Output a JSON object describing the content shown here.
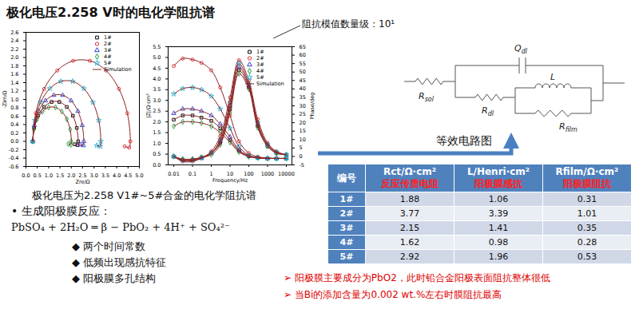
{
  "title": "极化电压2.258 V时的电化学阻抗谱",
  "annotation": "阻抗模值数量级：10¹",
  "chart_data": [
    {
      "type": "scatter",
      "xlabel": "Zre/Ω",
      "ylabel": "-Zim/Ω",
      "xlim": [
        0,
        5
      ],
      "ylim": [
        -0.6,
        2.6
      ],
      "xticks": [
        {
          "value": 0,
          "label": "0.0"
        },
        0.5,
        {
          "value": 1,
          "label": "1.0"
        },
        1.5,
        {
          "value": 2,
          "label": "2.0"
        },
        2.5,
        {
          "value": 3,
          "label": "3.0"
        },
        3.5,
        {
          "value": 4,
          "label": "4.0"
        },
        4.5,
        {
          "value": 5,
          "label": "5.0"
        }
      ],
      "yticks": [
        -0.6,
        -0.4,
        -0.2,
        {
          "value": 0,
          "label": "0.0"
        },
        0.2,
        0.4,
        0.6,
        0.8,
        {
          "value": 1,
          "label": "1.0"
        },
        1.2,
        1.4,
        1.6,
        1.8,
        {
          "value": 2,
          "label": "2.0"
        },
        2.2,
        2.4,
        2.6
      ],
      "legend": "top-right",
      "series": [
        {
          "name": "1#",
          "color": "#000000",
          "marker": "square",
          "x": [
            0.3,
            0.36,
            0.53,
            0.8,
            1.13,
            1.47,
            1.8,
            2.07,
            2.24,
            2.3,
            2.28,
            2.15
          ],
          "values": [
            0,
            0.32,
            0.61,
            0.82,
            0.94,
            0.94,
            0.82,
            0.61,
            0.32,
            0,
            -0.09,
            -0.07
          ]
        },
        {
          "name": "2#",
          "color": "#e8262a",
          "marker": "circle",
          "x": [
            0.3,
            0.43,
            0.8,
            1.38,
            2.08,
            2.82,
            3.53,
            4.1,
            4.47,
            4.6,
            4.55,
            4.35
          ],
          "values": [
            0,
            0.67,
            1.25,
            1.69,
            1.92,
            1.92,
            1.69,
            1.25,
            0.67,
            0,
            -0.15,
            -0.12
          ]
        },
        {
          "name": "3#",
          "color": "#2b3fd6",
          "marker": "triangle",
          "x": [
            0.3,
            0.37,
            0.56,
            0.86,
            1.23,
            1.62,
            1.99,
            2.29,
            2.48,
            2.55,
            2.53,
            2.4
          ],
          "values": [
            0,
            0.38,
            0.72,
            0.97,
            1.1,
            1.1,
            0.97,
            0.72,
            0.38,
            0,
            -0.1,
            -0.08
          ]
        },
        {
          "name": "4#",
          "color": "#1a9e3a",
          "marker": "diamond",
          "x": [
            0.3,
            0.35,
            0.5,
            0.73,
            1.0,
            1.3,
            1.58,
            1.8,
            1.95,
            2.0,
            1.98,
            1.87
          ],
          "values": [
            0,
            0.28,
            0.53,
            0.71,
            0.81,
            0.81,
            0.71,
            0.53,
            0.28,
            0,
            -0.08,
            -0.06
          ]
        },
        {
          "name": "5#",
          "color": "#27b6d8",
          "marker": "star",
          "x": [
            0.3,
            0.39,
            0.65,
            1.05,
            1.54,
            2.06,
            2.55,
            2.95,
            3.21,
            3.3,
            3.28,
            3.12
          ],
          "values": [
            0,
            0.5,
            0.93,
            1.26,
            1.43,
            1.43,
            1.26,
            0.93,
            0.5,
            0,
            -0.12,
            -0.1
          ]
        },
        {
          "name": "Simulation",
          "type": "line",
          "line_style": "solid",
          "color": "#8b2323",
          "x": [
            0.3,
            0.36,
            0.53,
            0.8,
            1.13,
            1.47,
            1.8,
            2.07,
            2.24,
            2.3,
            2.28,
            2.15
          ],
          "values": [
            0,
            0.32,
            0.61,
            0.82,
            0.94,
            0.94,
            0.82,
            0.61,
            0.32,
            0,
            -0.09,
            -0.07
          ]
        },
        {
          "name": "Simulation",
          "type": "line",
          "line_style": "solid",
          "color": "#8b2323",
          "x": [
            0.3,
            0.43,
            0.8,
            1.38,
            2.08,
            2.82,
            3.53,
            4.1,
            4.47,
            4.6,
            4.55,
            4.35
          ],
          "values": [
            0,
            0.67,
            1.25,
            1.69,
            1.92,
            1.92,
            1.69,
            1.25,
            0.67,
            0,
            -0.15,
            -0.12
          ]
        },
        {
          "name": "Simulation",
          "type": "line",
          "line_style": "solid",
          "color": "#8b2323",
          "x": [
            0.3,
            0.37,
            0.56,
            0.86,
            1.23,
            1.62,
            1.99,
            2.29,
            2.48,
            2.55,
            2.53,
            2.4
          ],
          "values": [
            0,
            0.38,
            0.72,
            0.97,
            1.1,
            1.1,
            0.97,
            0.72,
            0.38,
            0,
            -0.1,
            -0.08
          ]
        },
        {
          "name": "Simulation",
          "type": "line",
          "line_style": "solid",
          "color": "#8b2323",
          "x": [
            0.3,
            0.35,
            0.5,
            0.73,
            1.0,
            1.3,
            1.58,
            1.8,
            1.95,
            2.0,
            1.98,
            1.87
          ],
          "values": [
            0,
            0.28,
            0.53,
            0.71,
            0.81,
            0.81,
            0.71,
            0.53,
            0.28,
            0,
            -0.08,
            -0.06
          ]
        },
        {
          "name": "Simulation",
          "type": "line",
          "line_style": "solid",
          "color": "#8b2323",
          "x": [
            0.3,
            0.39,
            0.65,
            1.05,
            1.54,
            2.06,
            2.55,
            2.95,
            3.21,
            3.3,
            3.28,
            3.12
          ],
          "values": [
            0,
            0.5,
            0.93,
            1.26,
            1.43,
            1.43,
            1.26,
            0.93,
            0.5,
            0,
            -0.12,
            -0.1
          ]
        }
      ]
    },
    {
      "type": "scatter",
      "xlabel": "Frequency/Hz",
      "ylabel": "|Z|/Ω·cm²",
      "y2label": "Phase/deg",
      "log": "x",
      "xlim": [
        0.005,
        20000
      ],
      "xticks": [
        0.01,
        0.1,
        1,
        10,
        100,
        1000,
        10000
      ],
      "ylim": [
        0,
        5.5
      ],
      "yticks": [
        {
          "value": 0,
          "label": "0.0"
        },
        0.5,
        {
          "value": 1,
          "label": "1.0"
        },
        1.5,
        {
          "value": 2,
          "label": "2.0"
        },
        2.5,
        {
          "value": 3,
          "label": "3.0"
        },
        3.5,
        {
          "value": 4,
          "label": "4.0"
        },
        4.5,
        {
          "value": 5,
          "label": "5.0"
        },
        5.5
      ],
      "y2lim": [
        -5,
        65
      ],
      "y2ticks": [
        -5,
        0,
        5,
        10,
        15,
        20,
        25,
        30,
        35,
        40,
        45,
        50,
        55,
        60,
        65
      ],
      "legend": "top-right",
      "x": [
        0.01,
        0.03,
        0.1,
        0.3,
        1,
        3,
        10,
        30,
        100,
        300,
        1000,
        3000,
        10000
      ],
      "series": [
        {
          "name": "1#",
          "color": "#000000",
          "marker": "square",
          "values": [
            2.1,
            2.3,
            2.3,
            2.2,
            2.05,
            1.7,
            1.15,
            0.65,
            0.4,
            0.33,
            0.3,
            0.3,
            0.3
          ]
        },
        {
          "name": "2#",
          "color": "#e8262a",
          "marker": "circle",
          "values": [
            4.6,
            4.95,
            4.9,
            4.75,
            4.4,
            3.6,
            2.3,
            1.1,
            0.55,
            0.38,
            0.32,
            0.3,
            0.3
          ]
        },
        {
          "name": "3#",
          "color": "#2b3fd6",
          "marker": "triangle",
          "values": [
            2.4,
            2.6,
            2.6,
            2.5,
            2.3,
            1.9,
            1.3,
            0.7,
            0.42,
            0.33,
            0.3,
            0.3,
            0.3
          ]
        },
        {
          "name": "4#",
          "color": "#1a9e3a",
          "marker": "diamond",
          "values": [
            1.8,
            2.0,
            2.0,
            1.95,
            1.8,
            1.5,
            1.05,
            0.6,
            0.38,
            0.32,
            0.3,
            0.3,
            0.3
          ]
        },
        {
          "name": "5#",
          "color": "#27b6d8",
          "marker": "star",
          "values": [
            3.3,
            3.55,
            3.6,
            3.5,
            3.2,
            2.6,
            1.7,
            0.85,
            0.45,
            0.34,
            0.31,
            0.3,
            0.3
          ]
        },
        {
          "name": "1#",
          "color": "#000000",
          "marker": "square",
          "axis": "y2",
          "values": [
            0,
            -2,
            -2,
            -0.5,
            2,
            8,
            28,
            51,
            41,
            18,
            6,
            2,
            1
          ]
        },
        {
          "name": "2#",
          "color": "#e8262a",
          "marker": "circle",
          "axis": "y2",
          "values": [
            0,
            -3,
            -3,
            -1,
            3,
            12,
            35,
            57,
            45,
            22,
            8,
            3,
            1
          ]
        },
        {
          "name": "3#",
          "color": "#2b3fd6",
          "marker": "triangle",
          "axis": "y2",
          "values": [
            0,
            -2,
            -2,
            -1,
            2,
            9,
            30,
            53,
            42,
            19,
            7,
            2.5,
            1
          ]
        },
        {
          "name": "4#",
          "color": "#1a9e3a",
          "marker": "diamond",
          "axis": "y2",
          "values": [
            0,
            -1.5,
            -1.5,
            -0.5,
            1,
            7,
            26,
            49,
            40,
            17,
            6,
            2,
            1
          ]
        },
        {
          "name": "5#",
          "color": "#27b6d8",
          "marker": "star",
          "axis": "y2",
          "values": [
            0,
            -2.5,
            -2.5,
            -1,
            2,
            10,
            32,
            55,
            43,
            20,
            7,
            2.5,
            1
          ]
        },
        {
          "name": "Simulation",
          "type": "line",
          "line_style": "solid",
          "color": "#8b2323",
          "values": [
            2.1,
            2.3,
            2.3,
            2.2,
            2.05,
            1.7,
            1.15,
            0.65,
            0.4,
            0.33,
            0.3,
            0.3,
            0.3
          ]
        },
        {
          "name": "Simulation",
          "type": "line",
          "line_style": "solid",
          "color": "#8b2323",
          "values": [
            4.6,
            4.95,
            4.9,
            4.75,
            4.4,
            3.6,
            2.3,
            1.1,
            0.55,
            0.38,
            0.32,
            0.3,
            0.3
          ]
        },
        {
          "name": "Simulation",
          "type": "line",
          "line_style": "solid",
          "color": "#8b2323",
          "values": [
            2.4,
            2.6,
            2.6,
            2.5,
            2.3,
            1.9,
            1.3,
            0.7,
            0.42,
            0.33,
            0.3,
            0.3,
            0.3
          ]
        },
        {
          "name": "Simulation",
          "type": "line",
          "line_style": "solid",
          "color": "#8b2323",
          "values": [
            1.8,
            2.0,
            2.0,
            1.95,
            1.8,
            1.5,
            1.05,
            0.6,
            0.38,
            0.32,
            0.3,
            0.3,
            0.3
          ]
        },
        {
          "name": "Simulation",
          "type": "line",
          "line_style": "solid",
          "color": "#8b2323",
          "values": [
            3.3,
            3.55,
            3.6,
            3.5,
            3.2,
            2.6,
            1.7,
            0.85,
            0.45,
            0.34,
            0.31,
            0.3,
            0.3
          ]
        },
        {
          "name": "Simulation",
          "type": "line",
          "line_style": "solid",
          "color": "#8b2323",
          "axis": "y2",
          "values": [
            0,
            -2,
            -2,
            -0.5,
            2,
            8,
            28,
            51,
            41,
            18,
            6,
            2,
            1
          ]
        },
        {
          "name": "Simulation",
          "type": "line",
          "line_style": "solid",
          "color": "#8b2323",
          "axis": "y2",
          "values": [
            0,
            -3,
            -3,
            -1,
            3,
            12,
            35,
            57,
            45,
            22,
            8,
            3,
            1
          ]
        },
        {
          "name": "Simulation",
          "type": "line",
          "line_style": "solid",
          "color": "#8b2323",
          "axis": "y2",
          "values": [
            0,
            -2,
            -2,
            -1,
            2,
            9,
            30,
            53,
            42,
            19,
            7,
            2.5,
            1
          ]
        },
        {
          "name": "Simulation",
          "type": "line",
          "line_style": "solid",
          "color": "#8b2323",
          "axis": "y2",
          "values": [
            0,
            -1.5,
            -1.5,
            -0.5,
            1,
            7,
            26,
            49,
            40,
            17,
            6,
            2,
            1
          ]
        },
        {
          "name": "Simulation",
          "type": "line",
          "line_style": "solid",
          "color": "#8b2323",
          "axis": "y2",
          "values": [
            0,
            -2.5,
            -2.5,
            -1,
            2,
            10,
            32,
            55,
            43,
            20,
            7,
            2.5,
            1
          ]
        }
      ]
    }
  ],
  "caption": "极化电压为2.258 V1#~5#合金的电化学阻抗谱",
  "reaction": {
    "heading": "• 生成阳极膜反应：",
    "equation": "PbSO₄ + 2H₂O ═ β − PbO₂ + 4H⁺ + SO₄²⁻"
  },
  "features": [
    "◆ 两个时间常数",
    "◆ 低频出现感抗特征",
    "◆ 阳极膜多孔结构"
  ],
  "circuit": {
    "labels": {
      "Qdl": "Qdl",
      "Rsol": "Rsol",
      "Rdl": "Rdl",
      "L": "L",
      "Rfilm": "Rfilm"
    },
    "caption": "等效电路图"
  },
  "table": {
    "header": [
      [
        "编号"
      ],
      [
        "Rct/Ω·cm²",
        "反应传质电阻"
      ],
      [
        "L/Henri·cm²",
        "阳极膜感抗"
      ],
      [
        "Rfilm/Ω·cm²",
        "阳极膜阻抗"
      ]
    ],
    "rows": [
      [
        "1#",
        1.88,
        1.06,
        0.31
      ],
      [
        "2#",
        3.77,
        3.39,
        1.01
      ],
      [
        "3#",
        2.15,
        1.41,
        0.35
      ],
      [
        "4#",
        1.62,
        0.98,
        0.28
      ],
      [
        "5#",
        2.92,
        1.96,
        0.53
      ]
    ]
  },
  "conclusions": [
    "➢ 阳极膜主要成分为PbO2，此时铅合金阳极表面阻抗整体很低",
    "➢ 当Bi的添加含量为0.002 wt.%左右时膜阻抗最高"
  ]
}
